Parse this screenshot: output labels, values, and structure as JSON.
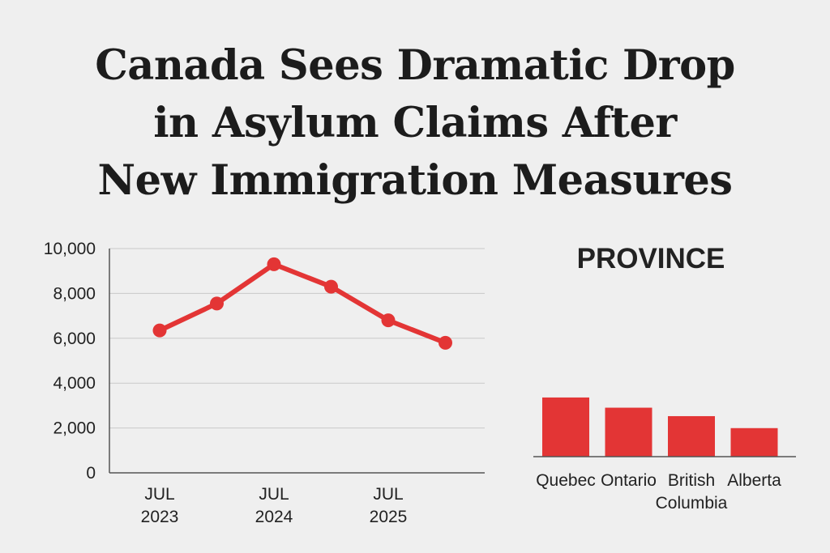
{
  "headline": {
    "line1": "Canada Sees Dramatic Drop",
    "line2": "in Asylum Claims After",
    "line3": "New Immigration Measures"
  },
  "colors": {
    "accent": "#e33535",
    "grid": "#c9c9c9",
    "axis": "#555555"
  },
  "chart_data": [
    {
      "type": "line",
      "y_ticks": [
        "10,000",
        "8,000",
        "6,000",
        "4,000",
        "2,000",
        "0"
      ],
      "ylim": [
        0,
        10000
      ],
      "grid": true,
      "x_tick_labels": [
        {
          "month": "JUL",
          "year": "2023",
          "at": 0
        },
        {
          "month": "JUL",
          "year": "2024",
          "at": 2
        },
        {
          "month": "JUL",
          "year": "2025",
          "at": 4
        }
      ],
      "series": [
        {
          "values": [
            6350,
            7550,
            9300,
            8300,
            6800,
            5800
          ]
        }
      ]
    },
    {
      "type": "bar",
      "title": "PROVINCE",
      "categories": [
        {
          "lines": [
            "Quebec"
          ]
        },
        {
          "lines": [
            "Ontario"
          ]
        },
        {
          "lines": [
            "British",
            "Columbia"
          ]
        },
        {
          "lines": [
            "Alberta"
          ]
        }
      ],
      "values": [
        8400,
        6950,
        5750,
        4050
      ],
      "ylim": [
        0,
        10000
      ]
    }
  ]
}
